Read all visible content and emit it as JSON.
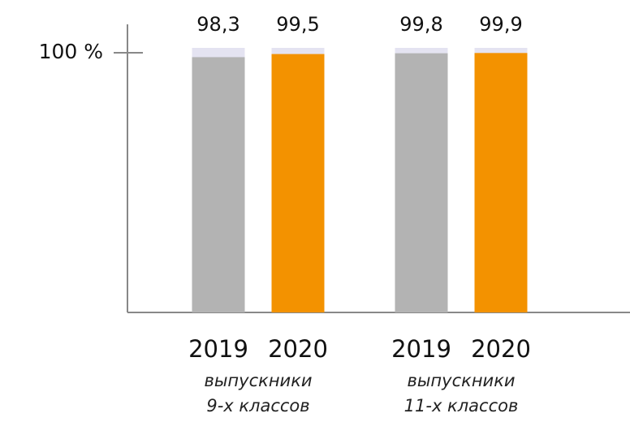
{
  "chart_data": {
    "type": "bar",
    "categories": [
      [
        "выпускники",
        "9-х классов"
      ],
      [
        "выпускники",
        "11-х классов"
      ]
    ],
    "series": [
      {
        "name": "2019",
        "color": "#b3b3b3",
        "values": [
          98.3,
          99.8
        ],
        "value_labels": [
          "98,3",
          "99,8"
        ]
      },
      {
        "name": "2020",
        "color": "#f39200",
        "values": [
          99.5,
          99.9
        ],
        "value_labels": [
          "99,5",
          "99,9"
        ]
      }
    ],
    "track_color": "#e4e3f1",
    "ylim": [
      0,
      110
    ],
    "yticks": [
      {
        "value": 100,
        "label": "100 %"
      }
    ]
  }
}
